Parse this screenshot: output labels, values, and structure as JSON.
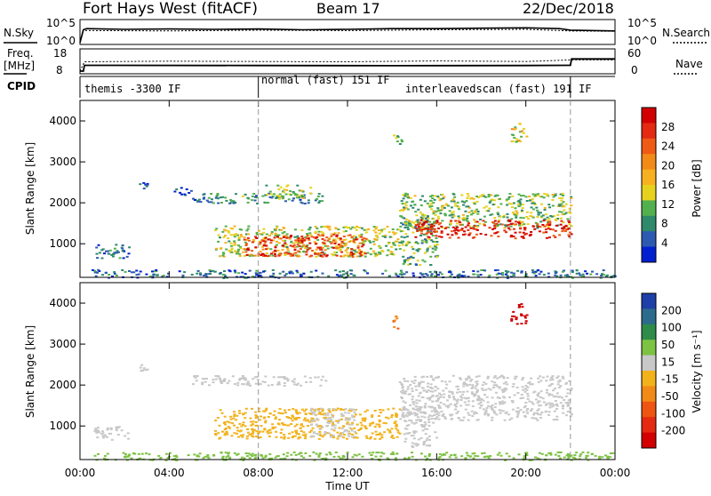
{
  "header": {
    "radar": "Fort Hays West (fitACF)",
    "beam": "Beam 17",
    "date": "22/Dec/2018"
  },
  "panels": {
    "nsky": {
      "left_label": "N.Sky",
      "right_label": "N.Search",
      "ticks_left": [
        "10^5",
        "10^0"
      ],
      "ticks_right": [
        "10^5",
        "10^0"
      ]
    },
    "freq": {
      "left_label_1": "Freq.",
      "left_label_2": "[MHz]",
      "right_label": "Nave",
      "ticks_left": [
        "18",
        "8"
      ],
      "ticks_right": [
        "60",
        "0"
      ]
    },
    "cpid": {
      "label": "CPID",
      "segments": [
        {
          "text": "themis -3300 IF",
          "start": 0.0,
          "end": 8.0
        },
        {
          "text": "normal (fast) 151 IF",
          "start": 8.0,
          "end": 14.3
        },
        {
          "text": "interleavedscan (fast) 191 IF",
          "start": 14.3,
          "end": 22.0
        }
      ]
    }
  },
  "x_axis": {
    "title": "Time UT",
    "tick_labels": [
      "00:00",
      "04:00",
      "08:00",
      "12:00",
      "16:00",
      "20:00",
      "00:00"
    ],
    "tick_hours": [
      0,
      4,
      8,
      12,
      16,
      20,
      24
    ],
    "range_hours": [
      0,
      24
    ]
  },
  "y_axis": {
    "title": "Slant Range [km]",
    "tick_labels": [
      "1000",
      "2000",
      "3000",
      "4000"
    ],
    "tick_values": [
      1000,
      2000,
      3000,
      4000
    ],
    "range_km": [
      180,
      4500
    ]
  },
  "colorbars": {
    "power": {
      "title": "Power [dB]",
      "labels": [
        "28",
        "24",
        "20",
        "16",
        "12",
        "8",
        "4"
      ],
      "colors": [
        "#0020d0",
        "#2c5ab0",
        "#2e8a6a",
        "#53b04e",
        "#e6d21e",
        "#f6b020",
        "#f28a18",
        "#ef5a14",
        "#e42a10",
        "#d20000"
      ]
    },
    "velocity": {
      "title": "Velocity [m s⁻¹]",
      "labels": [
        "200",
        "100",
        "50",
        "15",
        "-15",
        "-50",
        "-100",
        "-200"
      ],
      "colors": [
        "#1e3fa8",
        "#2d6b8c",
        "#2e8b4a",
        "#7dc243",
        "#c8c8c8",
        "#f2b21c",
        "#f28a18",
        "#ee5412",
        "#e42a10",
        "#d20000"
      ]
    }
  },
  "chart_data": [
    {
      "type": "line",
      "title": "N.Sky / N.Search",
      "series": [
        {
          "name": "N.Sky",
          "x": [
            0,
            0.15,
            0.3,
            2,
            4,
            6,
            8,
            10,
            12,
            14,
            16,
            18,
            20,
            21.5,
            22,
            24
          ],
          "values": [
            0,
            3.3,
            3.6,
            3.4,
            3.5,
            3.4,
            3.5,
            3.3,
            3.4,
            3.6,
            3.6,
            3.7,
            3.8,
            3.6,
            3.2,
            3.0
          ]
        },
        {
          "name": "N.Search",
          "x": [
            0,
            0.15,
            0.3,
            4,
            8,
            12,
            16,
            20,
            22,
            24
          ],
          "values": [
            0,
            3.0,
            3.1,
            3.0,
            3.2,
            3.1,
            3.3,
            3.4,
            3.0,
            2.9
          ]
        }
      ]
    },
    {
      "type": "line",
      "title": "Freq. / Nave",
      "series": [
        {
          "name": "Freq.",
          "x": [
            0,
            0.15,
            0.2,
            8,
            14,
            20,
            22,
            22.05,
            24
          ],
          "values": [
            8,
            8,
            11.1,
            11.0,
            10.9,
            11.0,
            11.1,
            14.5,
            14.5
          ]
        },
        {
          "name": "Nave",
          "x": [
            0,
            0.2,
            4,
            8,
            12,
            16,
            20,
            22,
            24
          ],
          "values": [
            0,
            30,
            32,
            31,
            30,
            33,
            31,
            36,
            36
          ]
        }
      ]
    },
    {
      "type": "heatmap",
      "title": "Power [dB]",
      "xlabel": "Time UT",
      "ylabel": "Slant Range [km]",
      "xlim": [
        0,
        24
      ],
      "ylim": [
        180,
        4500
      ],
      "blobs": [
        {
          "t0": 0.5,
          "t1": 24,
          "r0": 180,
          "r1": 380,
          "value": 6
        },
        {
          "t0": 0.6,
          "t1": 2.2,
          "r0": 650,
          "r1": 1000,
          "value": 6
        },
        {
          "t0": 2.6,
          "t1": 3.0,
          "r0": 2350,
          "r1": 2550,
          "value": 5
        },
        {
          "t0": 4.2,
          "t1": 5.0,
          "r0": 2200,
          "r1": 2400,
          "value": 5
        },
        {
          "t0": 5.0,
          "t1": 11.0,
          "r0": 2000,
          "r1": 2250,
          "value": 8
        },
        {
          "t0": 8.3,
          "t1": 10.3,
          "r0": 2100,
          "r1": 2450,
          "value": 12
        },
        {
          "t0": 6.0,
          "t1": 14.3,
          "r0": 700,
          "r1": 1450,
          "value": 14
        },
        {
          "t0": 7.3,
          "t1": 12.8,
          "r0": 700,
          "r1": 1250,
          "value": 26
        },
        {
          "t0": 14.3,
          "t1": 16.0,
          "r0": 500,
          "r1": 1700,
          "value": 10
        },
        {
          "t0": 14.3,
          "t1": 22.0,
          "r0": 1400,
          "r1": 2250,
          "value": 12
        },
        {
          "t0": 15.0,
          "t1": 22.0,
          "r0": 1150,
          "r1": 1600,
          "value": 28
        },
        {
          "t0": 19.3,
          "t1": 20.0,
          "r0": 3500,
          "r1": 4000,
          "value": 16
        },
        {
          "t0": 14.0,
          "t1": 14.4,
          "r0": 3400,
          "r1": 3700,
          "value": 10
        }
      ]
    },
    {
      "type": "heatmap",
      "title": "Velocity [m s⁻¹]",
      "xlabel": "Time UT",
      "ylabel": "Slant Range [km]",
      "xlim": [
        0,
        24
      ],
      "ylim": [
        180,
        4500
      ],
      "blobs": [
        {
          "t0": 0.5,
          "t1": 24,
          "r0": 180,
          "r1": 380,
          "value": 30
        },
        {
          "t0": 0.6,
          "t1": 2.2,
          "r0": 650,
          "r1": 1000,
          "value": 0
        },
        {
          "t0": 2.6,
          "t1": 3.0,
          "r0": 2350,
          "r1": 2550,
          "value": 0
        },
        {
          "t0": 5.0,
          "t1": 11.0,
          "r0": 2000,
          "r1": 2250,
          "value": 0
        },
        {
          "t0": 6.0,
          "t1": 14.3,
          "r0": 700,
          "r1": 1450,
          "value": -30
        },
        {
          "t0": 10.3,
          "t1": 12.3,
          "r0": 750,
          "r1": 1450,
          "value": 0
        },
        {
          "t0": 14.3,
          "t1": 22.0,
          "r0": 1150,
          "r1": 2250,
          "value": 0
        },
        {
          "t0": 14.5,
          "t1": 16.0,
          "r0": 500,
          "r1": 1500,
          "value": 0
        },
        {
          "t0": 19.3,
          "t1": 20.0,
          "r0": 3500,
          "r1": 4000,
          "value": -250
        },
        {
          "t0": 14.0,
          "t1": 14.4,
          "r0": 3400,
          "r1": 3700,
          "value": -100
        }
      ]
    }
  ]
}
